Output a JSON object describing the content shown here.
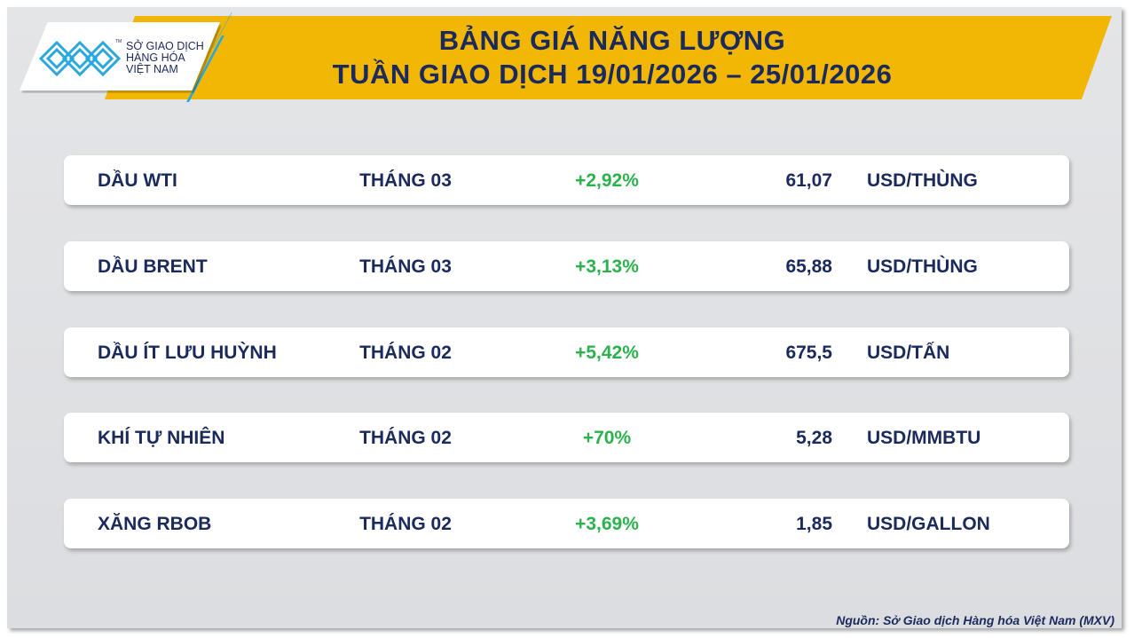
{
  "logo": {
    "text_lines": [
      "SỞ GIAO DỊCH",
      "HÀNG HÓA",
      "VIỆT NAM"
    ],
    "trademark": "TM"
  },
  "header": {
    "title": "BẢNG GIÁ NĂNG LƯỢNG",
    "subtitle": "TUẦN GIAO DỊCH 19/01/2026 – 25/01/2026"
  },
  "colors": {
    "banner": "#f2b705",
    "text": "#1b2a5c",
    "positive": "#2bb24c",
    "logo_blue": "#2aa8de"
  },
  "rows": [
    {
      "name": "DẦU WTI",
      "month": "THÁNG 03",
      "change": "+2,92%",
      "price": "61,07",
      "unit": "USD/THÙNG"
    },
    {
      "name": "DẦU BRENT",
      "month": "THÁNG 03",
      "change": "+3,13%",
      "price": "65,88",
      "unit": "USD/THÙNG"
    },
    {
      "name": "DẦU ÍT LƯU HUỲNH",
      "month": "THÁNG 02",
      "change": "+5,42%",
      "price": "675,5",
      "unit": "USD/TẤN"
    },
    {
      "name": "KHÍ TỰ NHIÊN",
      "month": "THÁNG 02",
      "change": "+70%",
      "price": "5,28",
      "unit": "USD/MMBTU"
    },
    {
      "name": "XĂNG RBOB",
      "month": "THÁNG 02",
      "change": "+3,69%",
      "price": "1,85",
      "unit": "USD/GALLON"
    }
  ],
  "footer": {
    "source": "Nguồn: Sở Giao dịch Hàng hóa Việt Nam (MXV)"
  }
}
